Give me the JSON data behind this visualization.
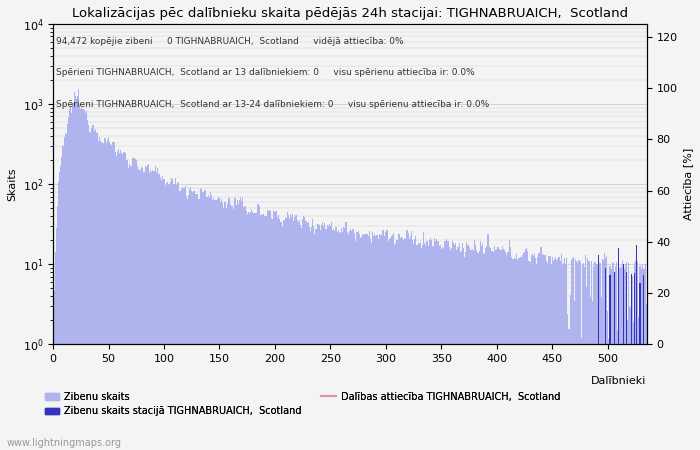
{
  "title": "Lokalizācijas pēc dalībnieku skaita pēdējās 24h stacijai: TIGHNABRUAICH,  Scotland",
  "xlabel": "Dalībnieki",
  "ylabel_left": "Skaits",
  "ylabel_right": "Attiecība [%]",
  "annotation_lines": [
    "94,472 kopējie zibeni     0 TIGHNABRUAICH,  Scotland     vidējā attiecība: 0%",
    "Spērieni TIGHNABRUAICH,  Scotland ar 13 dalībniekiem: 0     visu spērienu attiecība ir: 0.0%",
    "Spērieni TIGHNABRUAICH,  Scotland ar 13-24 dalībniekiem: 0     visu spērienu attiecība ir: 0.0%"
  ],
  "bar_color_main": "#b0b4ee",
  "bar_color_station": "#3333bb",
  "line_color": "#e090b0",
  "grid_color": "#cccccc",
  "background_color": "#f4f4f4",
  "watermark": "www.lightningmaps.org",
  "legend": {
    "label1": "Zibenu skaits",
    "label2": "Zibenu skaits stacijā TIGHNABRUAICH,  Scotland",
    "label3": "Dalības attiecība TIGHNABRUAICH,  Scotland"
  },
  "xlim": [
    0,
    535
  ],
  "ylim_right": [
    0,
    125
  ],
  "right_ticks": [
    0,
    20,
    40,
    60,
    80,
    100,
    120
  ],
  "x_ticks": [
    0,
    50,
    100,
    150,
    200,
    250,
    300,
    350,
    400,
    450,
    500
  ]
}
